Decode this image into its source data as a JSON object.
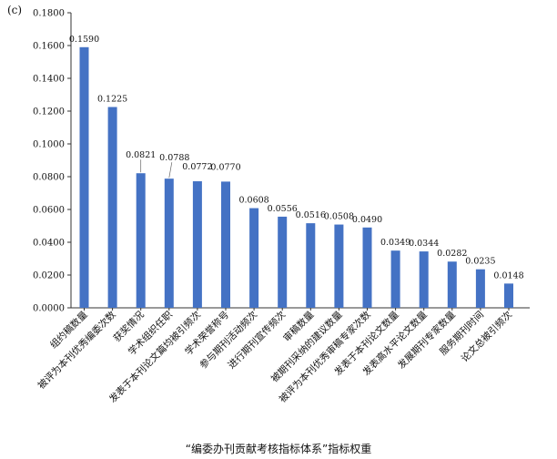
{
  "panel_label": "(c)",
  "caption": "“编委办刊贡献考核指标体系”指标权重",
  "colors": {
    "bar": "#4472C4",
    "axis": "#333333",
    "text": "#111111"
  },
  "chart_data": {
    "type": "bar",
    "title": "",
    "xlabel": "",
    "ylabel": "",
    "ylim": [
      0,
      0.18
    ],
    "yticks": [
      "0.0000",
      "0.0200",
      "0.0400",
      "0.0600",
      "0.0800",
      "0.1000",
      "0.1200",
      "0.1400",
      "0.1600",
      "0.1800"
    ],
    "grid": false,
    "categories": [
      "组约稿数量",
      "被评为本刊优秀编委次数",
      "获奖情况",
      "学术组织任职",
      "发表于本刊论文篇均被引频次",
      "学术荣誉称号",
      "参与期刊活动频次",
      "进行期刊宣传频次",
      "审稿数量",
      "被期刊采纳的建议数量",
      "被评为本刊优秀审稿专家次数",
      "发表于本刊论文数量",
      "发表高水平论文数量",
      "发展期刊专家数量",
      "服务期刊时间",
      "论文总被引频次"
    ],
    "values": [
      0.159,
      0.1225,
      0.0821,
      0.0788,
      0.0772,
      0.077,
      0.0608,
      0.0556,
      0.0516,
      0.0508,
      0.049,
      0.0349,
      0.0344,
      0.0282,
      0.0235,
      0.0148
    ],
    "value_labels": [
      "0.1590",
      "0.1225",
      "0.0821",
      "0.0788",
      "0.0772",
      "0.0770",
      "0.0608",
      "0.0556",
      "0.0516",
      "0.0508",
      "0.0490",
      "0.0349",
      "0.0344",
      "0.0282",
      "0.0235",
      "0.0148"
    ]
  }
}
